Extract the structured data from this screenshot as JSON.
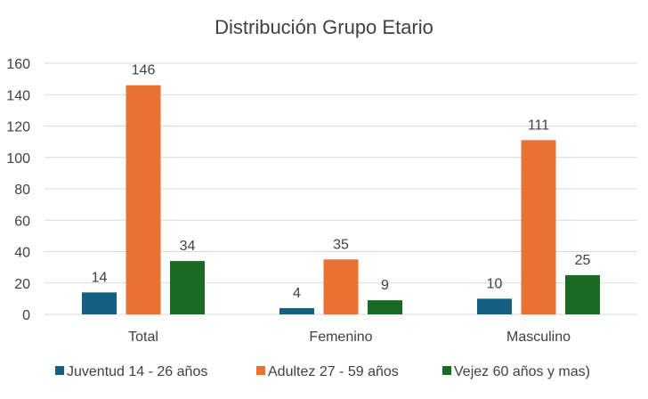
{
  "chart_data": {
    "type": "bar",
    "title": "Distribución Grupo Etario",
    "xlabel": "",
    "ylabel": "",
    "categories": [
      "Total",
      "Femenino",
      "Masculino"
    ],
    "ylim": [
      0,
      160
    ],
    "yticks": [
      0,
      20,
      40,
      60,
      80,
      100,
      120,
      140,
      160
    ],
    "grid": true,
    "legend_position": "bottom",
    "data_labels": true,
    "series": [
      {
        "name": "Juventud 14 - 26 años",
        "values": [
          14,
          4,
          10
        ],
        "color": "#156082"
      },
      {
        "name": "Adultez 27 - 59 años",
        "values": [
          146,
          35,
          111
        ],
        "color": "#e97132"
      },
      {
        "name": "Vejez 60 años y mas)",
        "values": [
          34,
          9,
          25
        ],
        "color": "#196b24"
      }
    ]
  }
}
